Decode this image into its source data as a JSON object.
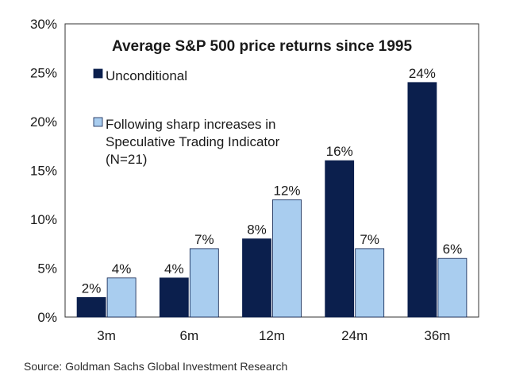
{
  "chart_data": {
    "type": "bar",
    "title": "Average S&P 500 price returns since 1995",
    "categories": [
      "3m",
      "6m",
      "12m",
      "24m",
      "36m"
    ],
    "series": [
      {
        "name": "Unconditional",
        "values": [
          2,
          4,
          8,
          16,
          24
        ],
        "labels": [
          "2%",
          "4%",
          "8%",
          "16%",
          "24%"
        ],
        "color": "#0b1f4d"
      },
      {
        "name": "Following sharp increases in Speculative Trading Indicator (N=21)",
        "name_lines": [
          "Following sharp increases in",
          "Speculative Trading Indicator",
          "(N=21)"
        ],
        "values": [
          4,
          7,
          12,
          7,
          6
        ],
        "labels": [
          "4%",
          "7%",
          "12%",
          "7%",
          "6%"
        ],
        "color": "#a9cdef"
      }
    ],
    "ylim": [
      0,
      30
    ],
    "yticks": [
      "0%",
      "5%",
      "10%",
      "15%",
      "20%",
      "25%",
      "30%"
    ],
    "xlabel": "",
    "ylabel": "",
    "grid": false,
    "legend_position": "top-left"
  },
  "source": "Source: Goldman Sachs Global Investment Research"
}
